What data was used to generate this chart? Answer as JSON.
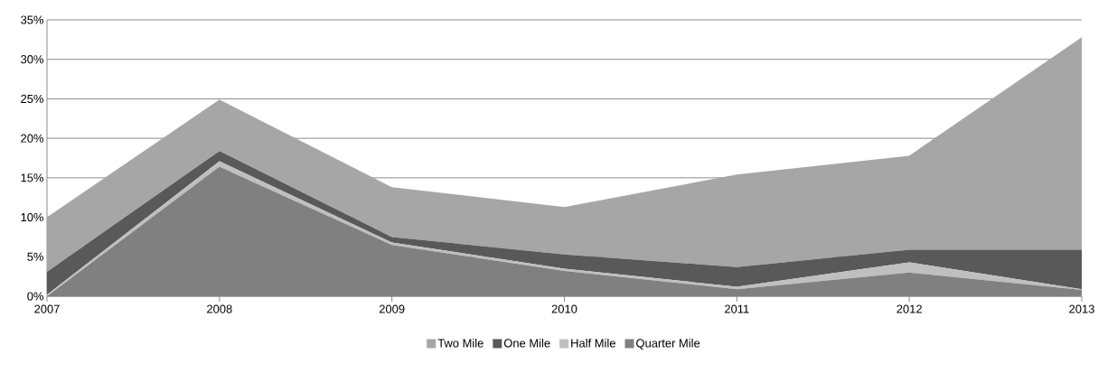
{
  "chart_data": {
    "type": "area",
    "stacked": true,
    "categories": [
      "2007",
      "2008",
      "2009",
      "2010",
      "2011",
      "2012",
      "2013"
    ],
    "series": [
      {
        "name": "Quarter Mile",
        "color": "#808080",
        "values": [
          0,
          16.4,
          6.5,
          3.2,
          0.9,
          3.0,
          0.8
        ]
      },
      {
        "name": "Half Mile",
        "color": "#bfbfbf",
        "values": [
          0.2,
          0.7,
          0.3,
          0.3,
          0.3,
          1.3,
          0.1
        ]
      },
      {
        "name": "One Mile",
        "color": "#595959",
        "values": [
          2.9,
          1.3,
          0.7,
          1.8,
          2.5,
          1.6,
          5.0
        ]
      },
      {
        "name": "Two Mile",
        "color": "#a6a6a6",
        "values": [
          6.9,
          6.5,
          6.3,
          6.0,
          11.7,
          11.9,
          26.9
        ]
      }
    ],
    "ylim": [
      0,
      35
    ],
    "yticks": [
      {
        "value": 0,
        "label": "0%"
      },
      {
        "value": 5,
        "label": "5%"
      },
      {
        "value": 10,
        "label": "10%"
      },
      {
        "value": 15,
        "label": "15%"
      },
      {
        "value": 20,
        "label": "20%"
      },
      {
        "value": 25,
        "label": "25%"
      },
      {
        "value": 30,
        "label": "30%"
      },
      {
        "value": 35,
        "label": "35%"
      }
    ],
    "grid": "y",
    "legend": "bottom"
  }
}
